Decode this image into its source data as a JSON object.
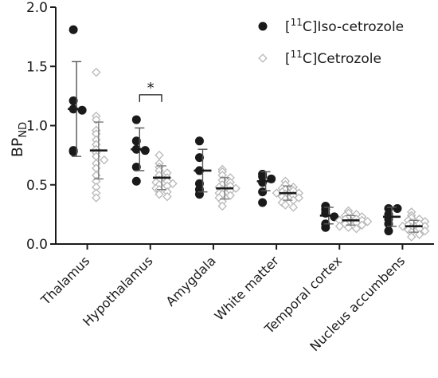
{
  "chart_data": {
    "type": "scatter",
    "ylabel_main": "BP",
    "ylabel_sub": "ND",
    "ylim": [
      0,
      2.0
    ],
    "yticks": [
      "0.0",
      "0.5",
      "1.0",
      "1.5",
      "2.0"
    ],
    "categories": [
      "Thalamus",
      "Hypothalamus",
      "Amygdala",
      "White matter",
      "Temporal cortex",
      "Nucleus accumbens"
    ],
    "legend_position": "top-right",
    "grid": false,
    "series": [
      {
        "name_prefix": "[",
        "name_sup": "11",
        "name_rest": "C]Iso-cetrozole",
        "marker": "filled-circle",
        "color": "#1a1a1a",
        "points": [
          [
            1.81,
            1.21,
            1.14,
            1.13,
            0.79,
            0.78
          ],
          [
            1.05,
            0.87,
            0.8,
            0.79,
            0.65,
            0.53
          ],
          [
            0.87,
            0.73,
            0.62,
            0.51,
            0.46,
            0.42
          ],
          [
            0.59,
            0.57,
            0.55,
            0.52,
            0.44,
            0.35
          ],
          [
            0.32,
            0.29,
            0.26,
            0.23,
            0.17,
            0.14
          ],
          [
            0.3,
            0.3,
            0.25,
            0.21,
            0.17,
            0.11
          ]
        ],
        "mean": [
          1.14,
          0.8,
          0.62,
          0.53,
          0.24,
          0.23
        ],
        "sd": [
          0.4,
          0.18,
          0.18,
          0.08,
          0.07,
          0.08
        ]
      },
      {
        "name_prefix": "[",
        "name_sup": "11",
        "name_rest": "C]Cetrozole",
        "marker": "open-diamond",
        "color": "#b8b8b8",
        "points": [
          [
            1.45,
            1.08,
            1.05,
            0.96,
            0.93,
            0.88,
            0.84,
            0.8,
            0.77,
            0.74,
            0.71,
            0.68,
            0.64,
            0.58,
            0.53,
            0.48,
            0.43,
            0.39
          ],
          [
            0.75,
            0.68,
            0.65,
            0.62,
            0.6,
            0.58,
            0.56,
            0.54,
            0.53,
            0.52,
            0.51,
            0.5,
            0.49,
            0.47,
            0.46,
            0.44,
            0.42,
            0.4
          ],
          [
            0.63,
            0.61,
            0.58,
            0.56,
            0.54,
            0.52,
            0.5,
            0.49,
            0.48,
            0.47,
            0.46,
            0.45,
            0.43,
            0.42,
            0.41,
            0.39,
            0.36,
            0.32
          ],
          [
            0.53,
            0.5,
            0.48,
            0.47,
            0.46,
            0.45,
            0.44,
            0.43,
            0.43,
            0.42,
            0.41,
            0.4,
            0.39,
            0.38,
            0.37,
            0.35,
            0.33,
            0.31
          ],
          [
            0.28,
            0.26,
            0.25,
            0.24,
            0.23,
            0.22,
            0.21,
            0.21,
            0.2,
            0.2,
            0.19,
            0.18,
            0.18,
            0.17,
            0.16,
            0.15,
            0.14,
            0.13
          ],
          [
            0.27,
            0.24,
            0.22,
            0.21,
            0.2,
            0.19,
            0.18,
            0.17,
            0.16,
            0.15,
            0.15,
            0.14,
            0.13,
            0.12,
            0.11,
            0.1,
            0.08,
            0.06
          ]
        ],
        "mean": [
          0.79,
          0.56,
          0.47,
          0.43,
          0.2,
          0.15
        ],
        "sd": [
          0.24,
          0.1,
          0.09,
          0.06,
          0.04,
          0.05
        ]
      }
    ],
    "annotations": [
      {
        "text": "*",
        "category_index": 1,
        "y_value": 1.26
      }
    ]
  }
}
